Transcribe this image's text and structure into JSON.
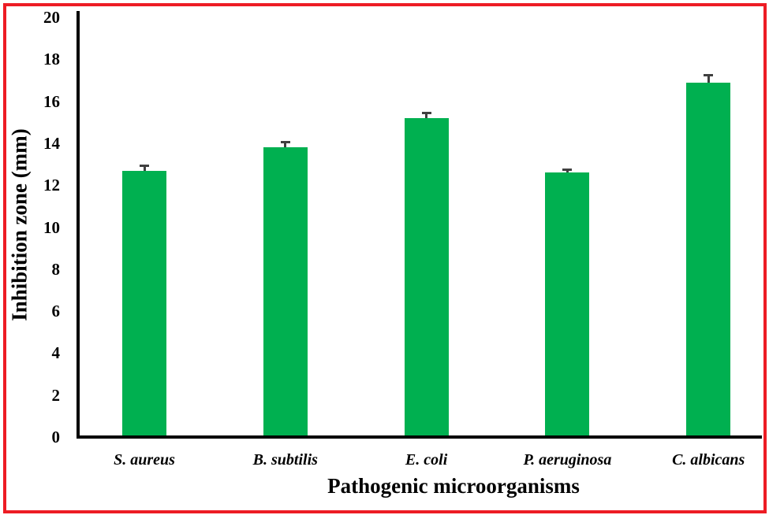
{
  "chart_data": {
    "type": "bar",
    "title": "",
    "xlabel": "Pathogenic microorganisms",
    "ylabel": "Inhibition zone (mm)",
    "categories": [
      "S. aureus",
      "B. subtilis",
      "E. coli",
      "P. aeruginosa",
      "C. albicans"
    ],
    "values": [
      12.7,
      13.8,
      15.2,
      12.6,
      16.9
    ],
    "error": [
      0.3,
      0.3,
      0.3,
      0.2,
      0.4
    ],
    "ylim": [
      0,
      20
    ],
    "yticks": [
      0,
      2,
      4,
      6,
      8,
      10,
      12,
      14,
      16,
      18,
      20
    ],
    "grid": false,
    "legend": null,
    "bar_color": "#00b050",
    "error_color": "#404040",
    "frame_color": "#ed1c24"
  }
}
